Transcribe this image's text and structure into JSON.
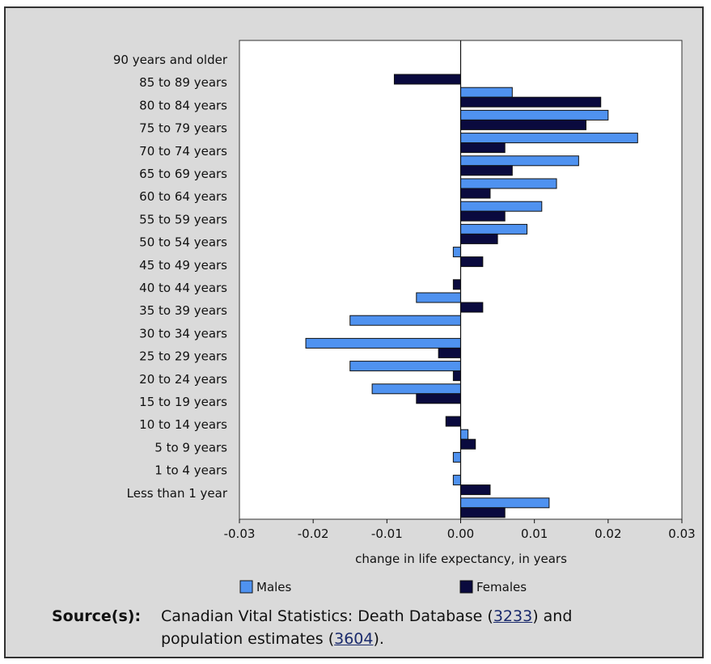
{
  "chart_data": {
    "type": "bar",
    "orientation": "horizontal",
    "xlabel": "change in life expectancy, in years",
    "xlim": [
      -0.03,
      0.03
    ],
    "xticks": [
      "-0.03",
      "-0.02",
      "-0.01",
      "0.00",
      "0.01",
      "0.02",
      "0.03"
    ],
    "grid": false,
    "legend_position": "bottom",
    "categories": [
      "90 years and older",
      "85 to 89 years",
      "80 to 84 years",
      "75 to 79 years",
      "70 to 74 years",
      "65 to 69 years",
      "60 to 64 years",
      "55 to 59 years",
      "50 to 54 years",
      "45 to 49 years",
      "40 to 44 years",
      "35 to 39 years",
      "30 to 34 years",
      "25 to 29 years",
      "20 to 24 years",
      "15 to 19 years",
      "10 to 14 years",
      "5 to 9 years",
      "1 to 4 years",
      "Less than 1 year"
    ],
    "series": [
      {
        "name": "Males",
        "color": "#4f92f0",
        "values": [
          0,
          0.007,
          0.02,
          0.024,
          0.016,
          0.013,
          0.011,
          0.009,
          -0.001,
          0,
          -0.006,
          -0.015,
          -0.021,
          -0.015,
          -0.012,
          0,
          0.001,
          -0.001,
          -0.001,
          0.012
        ]
      },
      {
        "name": "Females",
        "color": "#0a0a3e",
        "values": [
          -0.009,
          0.019,
          0.017,
          0.006,
          0.007,
          0.004,
          0.006,
          0.005,
          0.003,
          -0.001,
          0.003,
          0,
          -0.003,
          -0.001,
          -0.006,
          -0.002,
          0.002,
          0,
          0.004,
          0.006
        ]
      }
    ]
  },
  "source": {
    "label": "Source(s):",
    "text_before_1": "Canadian Vital Statistics: Death Database (",
    "link_1": "3233",
    "text_between": ") and population estimates (",
    "link_2": "3604",
    "text_after": ")."
  }
}
